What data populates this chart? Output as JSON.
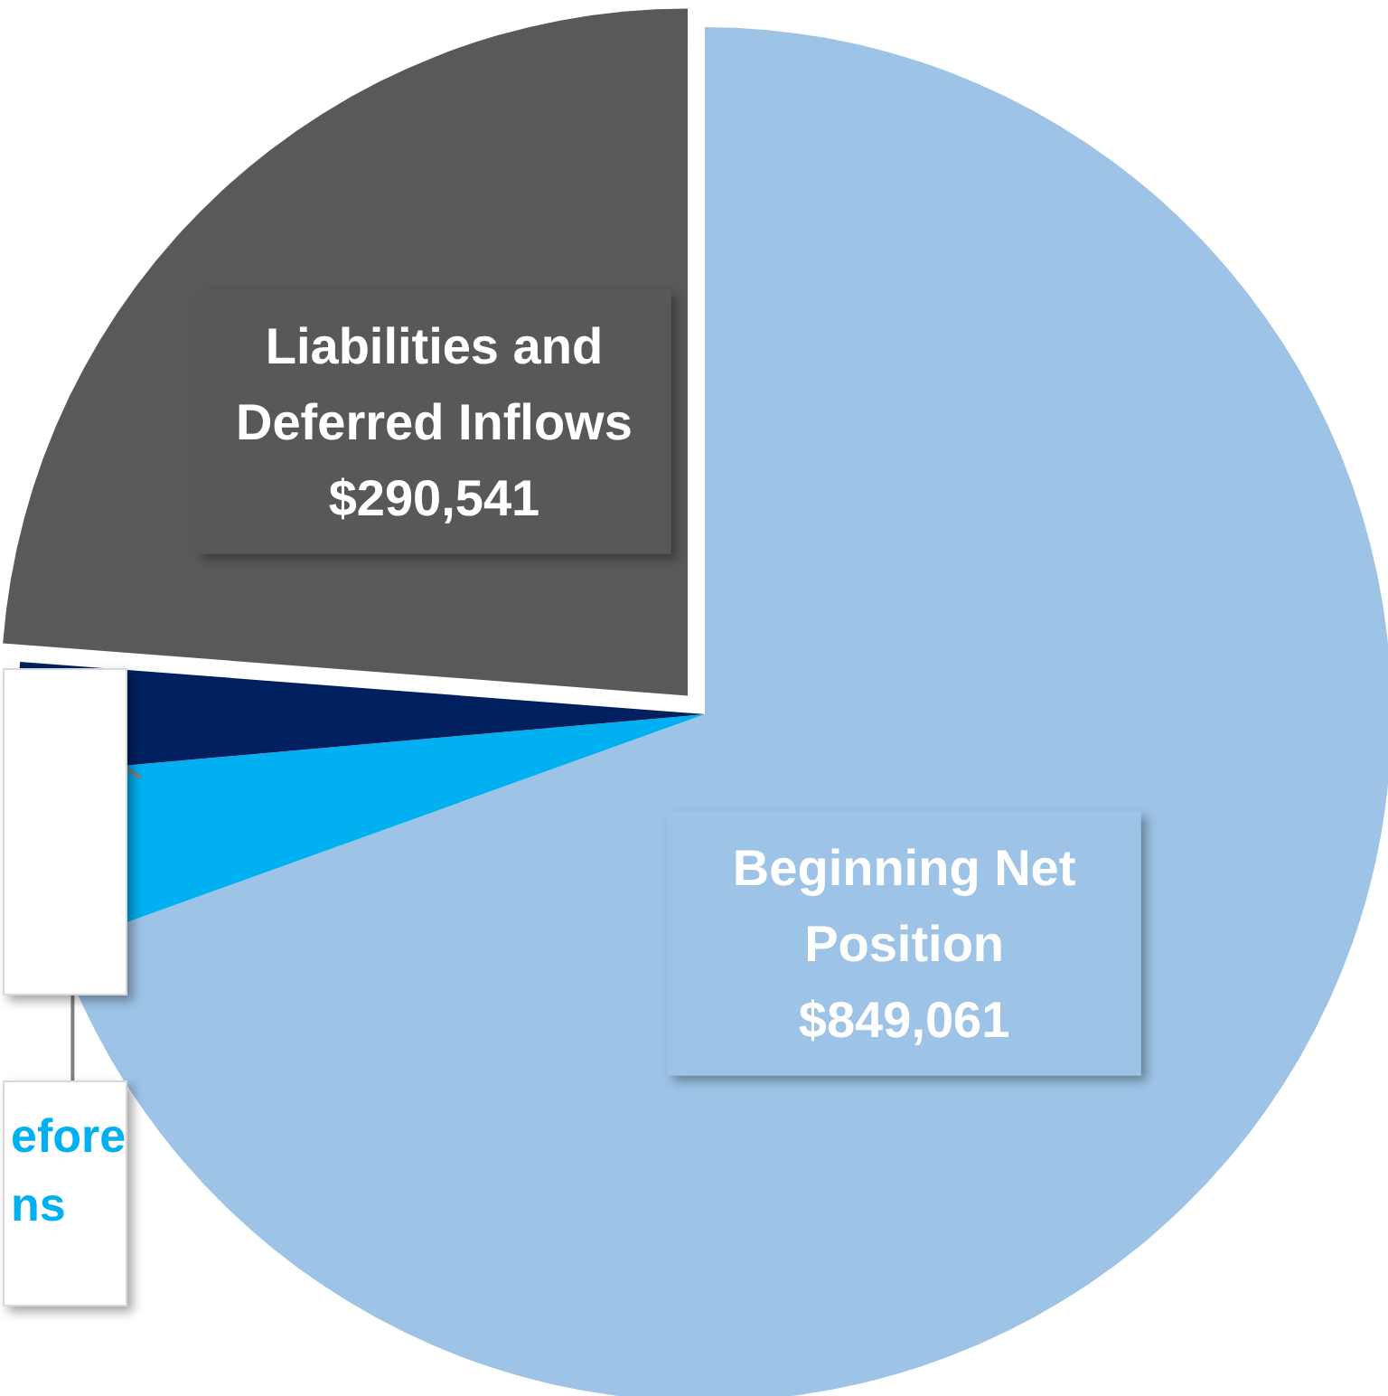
{
  "chart_data": {
    "type": "pie",
    "categories": [
      "Beginning Net Position",
      "efore ns",
      null,
      "Liabilities and Deferred Inflows"
    ],
    "values": [
      849061,
      50000,
      32000,
      290541
    ],
    "colors": [
      "#9dc3e6",
      "#00b0f0",
      "#002060",
      "#595959"
    ],
    "value_labels": [
      "$849,061",
      null,
      null,
      "$290,541"
    ]
  }
}
